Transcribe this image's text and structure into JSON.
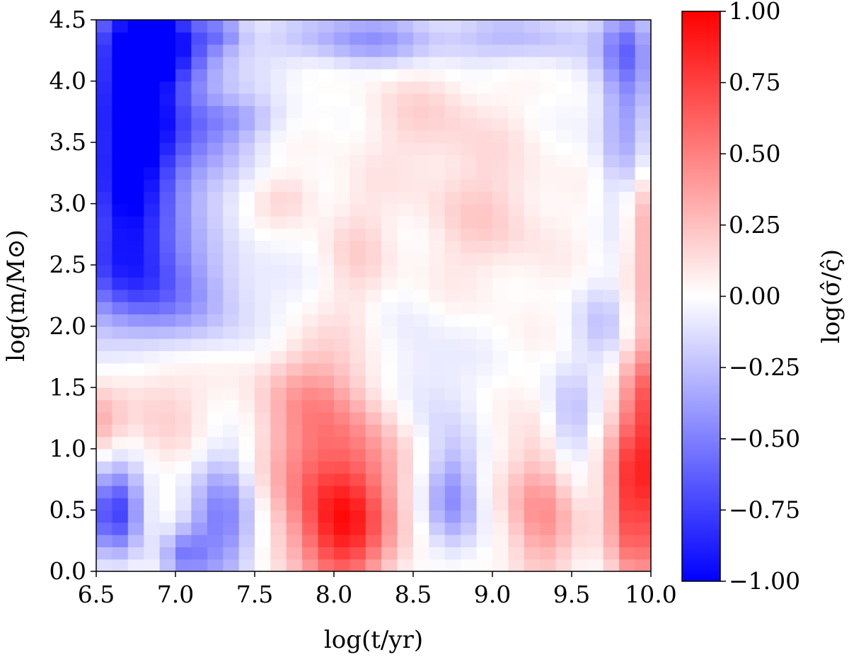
{
  "chart_data": {
    "type": "heatmap",
    "title": "",
    "xlabel": "log(t/yr)",
    "ylabel": "log(m/M⊙)",
    "colorbar_label": "log(σ̂/ς̂)",
    "xlim": [
      6.5,
      10.0
    ],
    "ylim": [
      0.0,
      4.5
    ],
    "clim": [
      -1.0,
      1.0
    ],
    "colormap": "bwr",
    "colormap_stops": {
      "low": "#0000ff",
      "mid": "#ffffff",
      "high": "#ff0000"
    },
    "x_ticks": [
      "6.5",
      "7.0",
      "7.5",
      "8.0",
      "8.5",
      "9.0",
      "9.5",
      "10.0"
    ],
    "y_ticks": [
      "0.0",
      "0.5",
      "1.0",
      "1.5",
      "2.0",
      "2.5",
      "3.0",
      "3.5",
      "4.0",
      "4.5"
    ],
    "colorbar_ticks": [
      "−1.00",
      "−0.75",
      "−0.50",
      "−0.25",
      "0.00",
      "0.25",
      "0.50",
      "0.75",
      "1.00"
    ],
    "grid": {
      "nx": 35,
      "ny": 45,
      "x_step": 0.1,
      "y_step": 0.1
    },
    "features": [
      {
        "x": 6.85,
        "y": 4.35,
        "v": -0.95,
        "sx": 0.25,
        "sy": 0.25
      },
      {
        "x": 6.7,
        "y": 3.8,
        "v": -0.75,
        "sx": 0.22,
        "sy": 0.45
      },
      {
        "x": 6.7,
        "y": 3.0,
        "v": -0.7,
        "sx": 0.22,
        "sy": 0.55
      },
      {
        "x": 6.75,
        "y": 2.4,
        "v": -0.45,
        "sx": 0.3,
        "sy": 0.35
      },
      {
        "x": 7.1,
        "y": 3.6,
        "v": -0.4,
        "sx": 0.25,
        "sy": 0.4
      },
      {
        "x": 7.4,
        "y": 3.7,
        "v": -0.2,
        "sx": 0.2,
        "sy": 0.12
      },
      {
        "x": 7.3,
        "y": 4.4,
        "v": -0.3,
        "sx": 0.1,
        "sy": 0.1
      },
      {
        "x": 8.2,
        "y": 4.35,
        "v": -0.4,
        "sx": 0.4,
        "sy": 0.15
      },
      {
        "x": 9.2,
        "y": 4.35,
        "v": -0.25,
        "sx": 0.3,
        "sy": 0.15
      },
      {
        "x": 9.85,
        "y": 3.8,
        "v": -0.45,
        "sx": 0.12,
        "sy": 0.55
      },
      {
        "x": 9.85,
        "y": 4.3,
        "v": -0.3,
        "sx": 0.12,
        "sy": 0.2
      },
      {
        "x": 6.62,
        "y": 0.5,
        "v": -0.75,
        "sx": 0.12,
        "sy": 0.25
      },
      {
        "x": 7.3,
        "y": 0.4,
        "v": -0.5,
        "sx": 0.15,
        "sy": 0.4
      },
      {
        "x": 7.05,
        "y": 0.15,
        "v": -0.4,
        "sx": 0.1,
        "sy": 0.15
      },
      {
        "x": 8.75,
        "y": 0.6,
        "v": -0.45,
        "sx": 0.12,
        "sy": 0.3
      },
      {
        "x": 8.55,
        "y": 1.5,
        "v": -0.15,
        "sx": 0.2,
        "sy": 0.4
      },
      {
        "x": 9.5,
        "y": 1.2,
        "v": -0.25,
        "sx": 0.1,
        "sy": 0.3
      },
      {
        "x": 9.7,
        "y": 2.0,
        "v": -0.2,
        "sx": 0.12,
        "sy": 0.25
      },
      {
        "x": 7.2,
        "y": 2.2,
        "v": -0.2,
        "sx": 0.3,
        "sy": 0.3
      },
      {
        "x": 8.05,
        "y": 0.3,
        "v": 0.75,
        "sx": 0.22,
        "sy": 0.35
      },
      {
        "x": 8.0,
        "y": 0.9,
        "v": 0.5,
        "sx": 0.3,
        "sy": 0.4
      },
      {
        "x": 7.85,
        "y": 1.5,
        "v": 0.25,
        "sx": 0.25,
        "sy": 0.3
      },
      {
        "x": 9.3,
        "y": 0.5,
        "v": 0.45,
        "sx": 0.15,
        "sy": 0.4
      },
      {
        "x": 9.9,
        "y": 0.6,
        "v": 0.85,
        "sx": 0.12,
        "sy": 0.5
      },
      {
        "x": 9.95,
        "y": 1.4,
        "v": 0.45,
        "sx": 0.08,
        "sy": 0.4
      },
      {
        "x": 9.95,
        "y": 2.8,
        "v": 0.35,
        "sx": 0.08,
        "sy": 0.5
      },
      {
        "x": 6.9,
        "y": 1.4,
        "v": 0.2,
        "sx": 0.2,
        "sy": 0.35
      },
      {
        "x": 6.55,
        "y": 1.2,
        "v": 0.25,
        "sx": 0.08,
        "sy": 0.2
      },
      {
        "x": 8.6,
        "y": 3.7,
        "v": 0.15,
        "sx": 0.3,
        "sy": 0.3
      },
      {
        "x": 7.7,
        "y": 3.05,
        "v": 0.15,
        "sx": 0.15,
        "sy": 0.15
      },
      {
        "x": 8.95,
        "y": 2.9,
        "v": 0.18,
        "sx": 0.3,
        "sy": 0.4
      },
      {
        "x": 8.15,
        "y": 2.6,
        "v": 0.15,
        "sx": 0.15,
        "sy": 0.4
      }
    ]
  }
}
